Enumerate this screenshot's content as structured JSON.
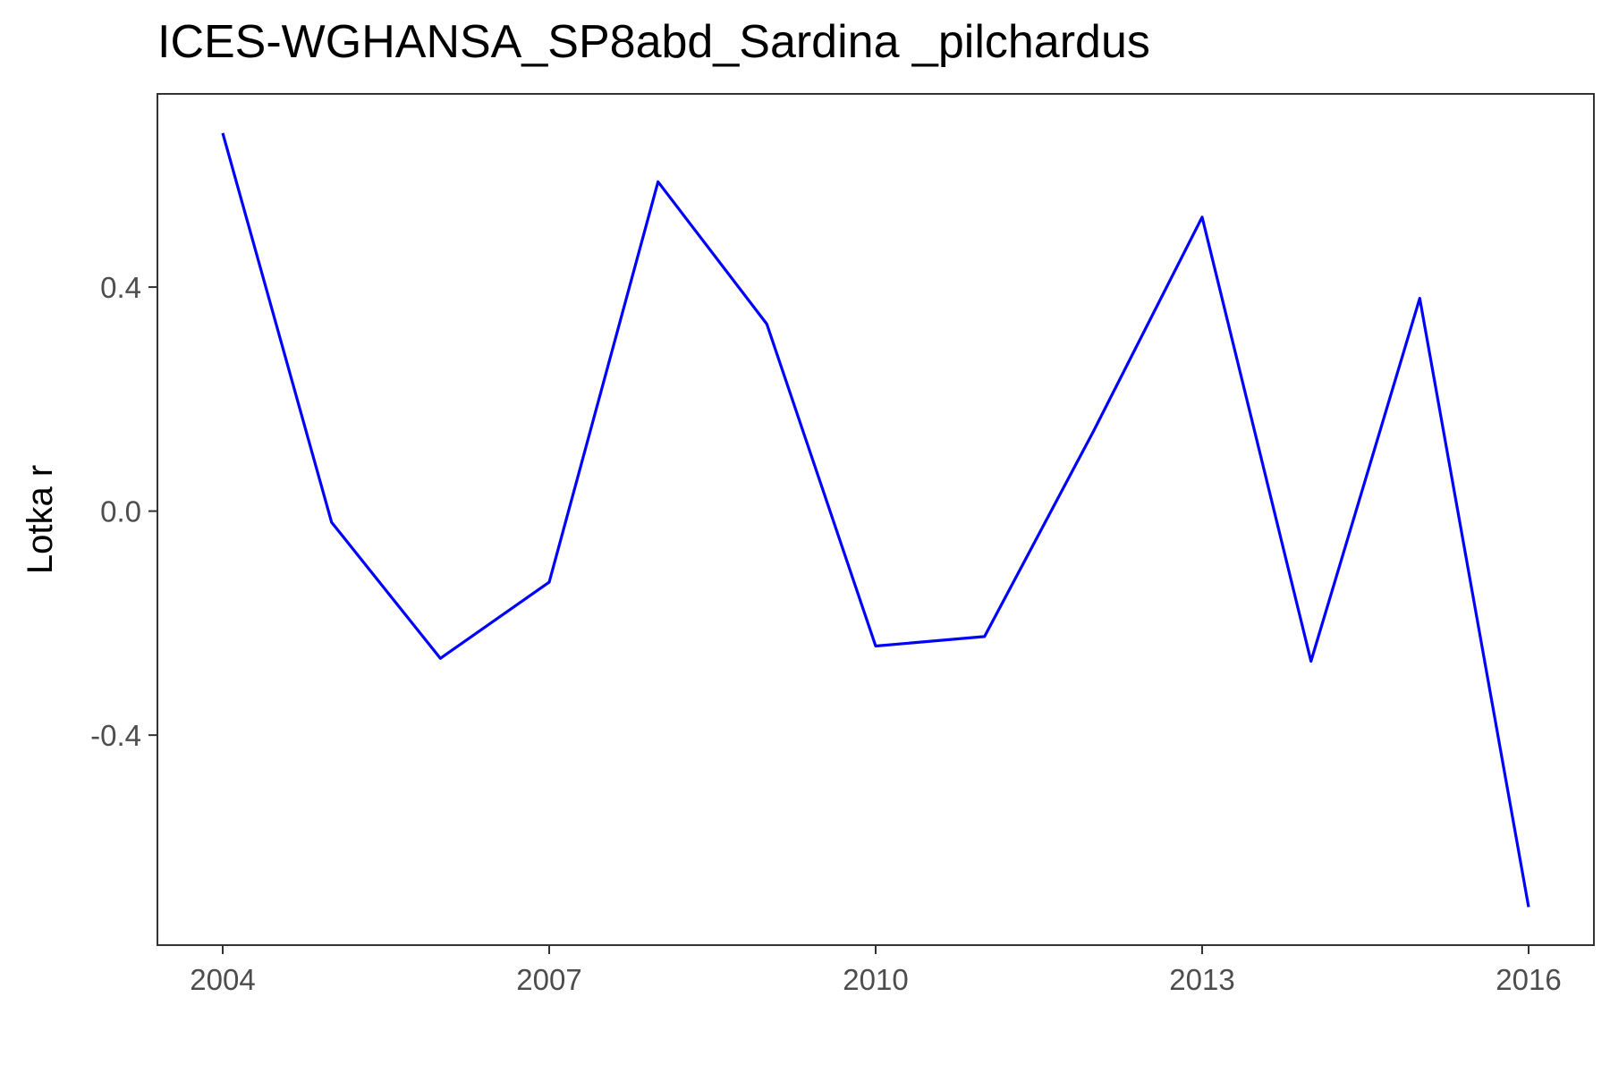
{
  "chart_data": {
    "type": "line",
    "title": "ICES-WGHANSA_SP8abd_Sardina _pilchardus",
    "xlabel": "",
    "ylabel": "Lotka r",
    "x": [
      2004,
      2005,
      2006,
      2007,
      2008,
      2009,
      2010,
      2011,
      2012,
      2013,
      2014,
      2015,
      2016
    ],
    "series": [
      {
        "values": [
          0.675,
          -0.02,
          -0.263,
          -0.127,
          0.588,
          0.334,
          -0.241,
          -0.224,
          0.142,
          0.525,
          -0.268,
          0.38,
          -0.707
        ],
        "color": "#0000ff"
      }
    ],
    "xticks": [
      "2004",
      "2007",
      "2010",
      "2013",
      "2016"
    ],
    "yticks": [
      "-0.4",
      "0.0",
      "0.4"
    ],
    "xlim": [
      2003.4,
      2016.6
    ],
    "ylim": [
      -0.775,
      0.745
    ],
    "grid": false,
    "legend": "none"
  }
}
